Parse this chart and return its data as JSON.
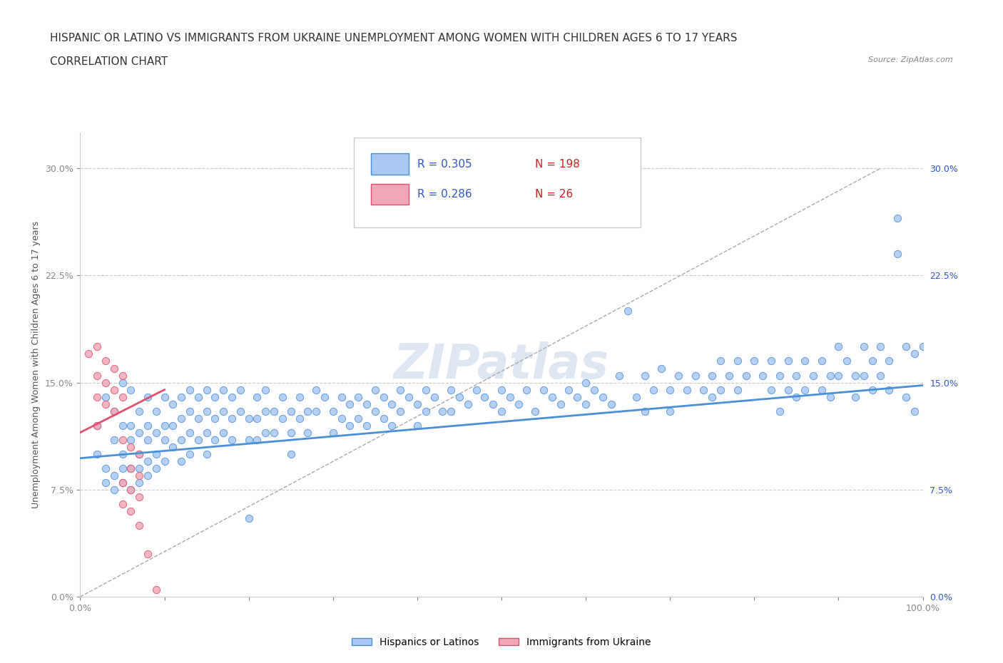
{
  "title_line1": "HISPANIC OR LATINO VS IMMIGRANTS FROM UKRAINE UNEMPLOYMENT AMONG WOMEN WITH CHILDREN AGES 6 TO 17 YEARS",
  "title_line2": "CORRELATION CHART",
  "source_text": "Source: ZipAtlas.com",
  "ylabel": "Unemployment Among Women with Children Ages 6 to 17 years",
  "xmin": 0.0,
  "xmax": 1.0,
  "ymin": 0.0,
  "ymax": 0.325,
  "yticks": [
    0.0,
    0.075,
    0.15,
    0.225,
    0.3
  ],
  "ytick_labels": [
    "0.0%",
    "7.5%",
    "15.0%",
    "22.5%",
    "30.0%"
  ],
  "xticks": [
    0.0,
    0.1,
    0.2,
    0.3,
    0.4,
    0.5,
    0.6,
    0.7,
    0.8,
    0.9,
    1.0
  ],
  "xtick_labels": [
    "0.0%",
    "",
    "",
    "",
    "",
    "",
    "",
    "",
    "",
    "",
    "100.0%"
  ],
  "blue_color": "#a8c8f0",
  "blue_line_color": "#4a90d9",
  "pink_color": "#f0a8b8",
  "pink_line_color": "#e05070",
  "legend_text_color": "#3355cc",
  "red_text_color": "#cc2222",
  "watermark_color": "#c8d8e8",
  "grid_color": "#cccccc",
  "R_blue": 0.305,
  "N_blue": 198,
  "R_pink": 0.286,
  "N_pink": 26,
  "blue_scatter": [
    [
      0.02,
      0.12
    ],
    [
      0.02,
      0.1
    ],
    [
      0.03,
      0.14
    ],
    [
      0.03,
      0.09
    ],
    [
      0.03,
      0.08
    ],
    [
      0.04,
      0.13
    ],
    [
      0.04,
      0.11
    ],
    [
      0.04,
      0.085
    ],
    [
      0.04,
      0.075
    ],
    [
      0.05,
      0.15
    ],
    [
      0.05,
      0.12
    ],
    [
      0.05,
      0.1
    ],
    [
      0.05,
      0.09
    ],
    [
      0.05,
      0.08
    ],
    [
      0.06,
      0.145
    ],
    [
      0.06,
      0.12
    ],
    [
      0.06,
      0.11
    ],
    [
      0.06,
      0.09
    ],
    [
      0.06,
      0.075
    ],
    [
      0.07,
      0.13
    ],
    [
      0.07,
      0.115
    ],
    [
      0.07,
      0.1
    ],
    [
      0.07,
      0.09
    ],
    [
      0.07,
      0.08
    ],
    [
      0.08,
      0.14
    ],
    [
      0.08,
      0.12
    ],
    [
      0.08,
      0.11
    ],
    [
      0.08,
      0.095
    ],
    [
      0.08,
      0.085
    ],
    [
      0.09,
      0.13
    ],
    [
      0.09,
      0.115
    ],
    [
      0.09,
      0.1
    ],
    [
      0.09,
      0.09
    ],
    [
      0.1,
      0.14
    ],
    [
      0.1,
      0.12
    ],
    [
      0.1,
      0.11
    ],
    [
      0.1,
      0.095
    ],
    [
      0.11,
      0.135
    ],
    [
      0.11,
      0.12
    ],
    [
      0.11,
      0.105
    ],
    [
      0.12,
      0.14
    ],
    [
      0.12,
      0.125
    ],
    [
      0.12,
      0.11
    ],
    [
      0.12,
      0.095
    ],
    [
      0.13,
      0.145
    ],
    [
      0.13,
      0.13
    ],
    [
      0.13,
      0.115
    ],
    [
      0.13,
      0.1
    ],
    [
      0.14,
      0.14
    ],
    [
      0.14,
      0.125
    ],
    [
      0.14,
      0.11
    ],
    [
      0.15,
      0.145
    ],
    [
      0.15,
      0.13
    ],
    [
      0.15,
      0.115
    ],
    [
      0.15,
      0.1
    ],
    [
      0.16,
      0.14
    ],
    [
      0.16,
      0.125
    ],
    [
      0.16,
      0.11
    ],
    [
      0.17,
      0.145
    ],
    [
      0.17,
      0.13
    ],
    [
      0.17,
      0.115
    ],
    [
      0.18,
      0.14
    ],
    [
      0.18,
      0.125
    ],
    [
      0.18,
      0.11
    ],
    [
      0.19,
      0.145
    ],
    [
      0.19,
      0.13
    ],
    [
      0.2,
      0.055
    ],
    [
      0.2,
      0.11
    ],
    [
      0.2,
      0.125
    ],
    [
      0.21,
      0.14
    ],
    [
      0.21,
      0.125
    ],
    [
      0.21,
      0.11
    ],
    [
      0.22,
      0.145
    ],
    [
      0.22,
      0.13
    ],
    [
      0.22,
      0.115
    ],
    [
      0.23,
      0.13
    ],
    [
      0.23,
      0.115
    ],
    [
      0.24,
      0.14
    ],
    [
      0.24,
      0.125
    ],
    [
      0.25,
      0.13
    ],
    [
      0.25,
      0.115
    ],
    [
      0.25,
      0.1
    ],
    [
      0.26,
      0.14
    ],
    [
      0.26,
      0.125
    ],
    [
      0.27,
      0.13
    ],
    [
      0.27,
      0.115
    ],
    [
      0.28,
      0.145
    ],
    [
      0.28,
      0.13
    ],
    [
      0.29,
      0.14
    ],
    [
      0.3,
      0.13
    ],
    [
      0.3,
      0.115
    ],
    [
      0.31,
      0.14
    ],
    [
      0.31,
      0.125
    ],
    [
      0.32,
      0.135
    ],
    [
      0.32,
      0.12
    ],
    [
      0.33,
      0.14
    ],
    [
      0.33,
      0.125
    ],
    [
      0.34,
      0.135
    ],
    [
      0.34,
      0.12
    ],
    [
      0.35,
      0.145
    ],
    [
      0.35,
      0.13
    ],
    [
      0.36,
      0.14
    ],
    [
      0.36,
      0.125
    ],
    [
      0.37,
      0.135
    ],
    [
      0.37,
      0.12
    ],
    [
      0.38,
      0.145
    ],
    [
      0.38,
      0.13
    ],
    [
      0.39,
      0.14
    ],
    [
      0.4,
      0.135
    ],
    [
      0.4,
      0.12
    ],
    [
      0.41,
      0.145
    ],
    [
      0.41,
      0.13
    ],
    [
      0.42,
      0.14
    ],
    [
      0.43,
      0.13
    ],
    [
      0.44,
      0.145
    ],
    [
      0.44,
      0.13
    ],
    [
      0.45,
      0.14
    ],
    [
      0.46,
      0.135
    ],
    [
      0.47,
      0.145
    ],
    [
      0.48,
      0.14
    ],
    [
      0.49,
      0.135
    ],
    [
      0.5,
      0.145
    ],
    [
      0.5,
      0.13
    ],
    [
      0.51,
      0.14
    ],
    [
      0.52,
      0.135
    ],
    [
      0.53,
      0.145
    ],
    [
      0.54,
      0.13
    ],
    [
      0.55,
      0.145
    ],
    [
      0.56,
      0.14
    ],
    [
      0.57,
      0.135
    ],
    [
      0.58,
      0.145
    ],
    [
      0.59,
      0.14
    ],
    [
      0.6,
      0.135
    ],
    [
      0.6,
      0.15
    ],
    [
      0.61,
      0.145
    ],
    [
      0.62,
      0.14
    ],
    [
      0.63,
      0.135
    ],
    [
      0.64,
      0.155
    ],
    [
      0.65,
      0.2
    ],
    [
      0.66,
      0.14
    ],
    [
      0.67,
      0.155
    ],
    [
      0.67,
      0.13
    ],
    [
      0.68,
      0.145
    ],
    [
      0.69,
      0.16
    ],
    [
      0.7,
      0.145
    ],
    [
      0.7,
      0.13
    ],
    [
      0.71,
      0.155
    ],
    [
      0.72,
      0.145
    ],
    [
      0.73,
      0.155
    ],
    [
      0.74,
      0.145
    ],
    [
      0.75,
      0.155
    ],
    [
      0.75,
      0.14
    ],
    [
      0.76,
      0.165
    ],
    [
      0.76,
      0.145
    ],
    [
      0.77,
      0.155
    ],
    [
      0.78,
      0.165
    ],
    [
      0.78,
      0.145
    ],
    [
      0.79,
      0.155
    ],
    [
      0.8,
      0.165
    ],
    [
      0.81,
      0.155
    ],
    [
      0.82,
      0.165
    ],
    [
      0.82,
      0.145
    ],
    [
      0.83,
      0.155
    ],
    [
      0.83,
      0.13
    ],
    [
      0.84,
      0.165
    ],
    [
      0.84,
      0.145
    ],
    [
      0.85,
      0.155
    ],
    [
      0.85,
      0.14
    ],
    [
      0.86,
      0.165
    ],
    [
      0.86,
      0.145
    ],
    [
      0.87,
      0.155
    ],
    [
      0.88,
      0.165
    ],
    [
      0.88,
      0.145
    ],
    [
      0.89,
      0.155
    ],
    [
      0.89,
      0.14
    ],
    [
      0.9,
      0.175
    ],
    [
      0.9,
      0.155
    ],
    [
      0.91,
      0.165
    ],
    [
      0.92,
      0.155
    ],
    [
      0.92,
      0.14
    ],
    [
      0.93,
      0.175
    ],
    [
      0.93,
      0.155
    ],
    [
      0.94,
      0.165
    ],
    [
      0.94,
      0.145
    ],
    [
      0.95,
      0.175
    ],
    [
      0.95,
      0.155
    ],
    [
      0.96,
      0.165
    ],
    [
      0.96,
      0.145
    ],
    [
      0.97,
      0.265
    ],
    [
      0.97,
      0.24
    ],
    [
      0.98,
      0.175
    ],
    [
      0.98,
      0.14
    ],
    [
      0.99,
      0.17
    ],
    [
      0.99,
      0.13
    ],
    [
      1.0,
      0.175
    ]
  ],
  "pink_scatter": [
    [
      0.01,
      0.17
    ],
    [
      0.02,
      0.175
    ],
    [
      0.02,
      0.155
    ],
    [
      0.02,
      0.14
    ],
    [
      0.02,
      0.12
    ],
    [
      0.03,
      0.165
    ],
    [
      0.03,
      0.15
    ],
    [
      0.03,
      0.135
    ],
    [
      0.04,
      0.16
    ],
    [
      0.04,
      0.145
    ],
    [
      0.04,
      0.13
    ],
    [
      0.05,
      0.155
    ],
    [
      0.05,
      0.14
    ],
    [
      0.05,
      0.11
    ],
    [
      0.05,
      0.08
    ],
    [
      0.05,
      0.065
    ],
    [
      0.06,
      0.105
    ],
    [
      0.06,
      0.09
    ],
    [
      0.06,
      0.075
    ],
    [
      0.06,
      0.06
    ],
    [
      0.07,
      0.1
    ],
    [
      0.07,
      0.085
    ],
    [
      0.07,
      0.07
    ],
    [
      0.07,
      0.05
    ],
    [
      0.08,
      0.03
    ],
    [
      0.09,
      0.005
    ]
  ],
  "blue_trend_x": [
    0.0,
    1.0
  ],
  "blue_trend_y": [
    0.097,
    0.148
  ],
  "pink_trend_x": [
    0.0,
    0.1
  ],
  "pink_trend_y": [
    0.115,
    0.145
  ],
  "title_fontsize": 11,
  "subtitle_fontsize": 11,
  "axis_label_fontsize": 9,
  "tick_fontsize": 9,
  "legend_fontsize": 11
}
